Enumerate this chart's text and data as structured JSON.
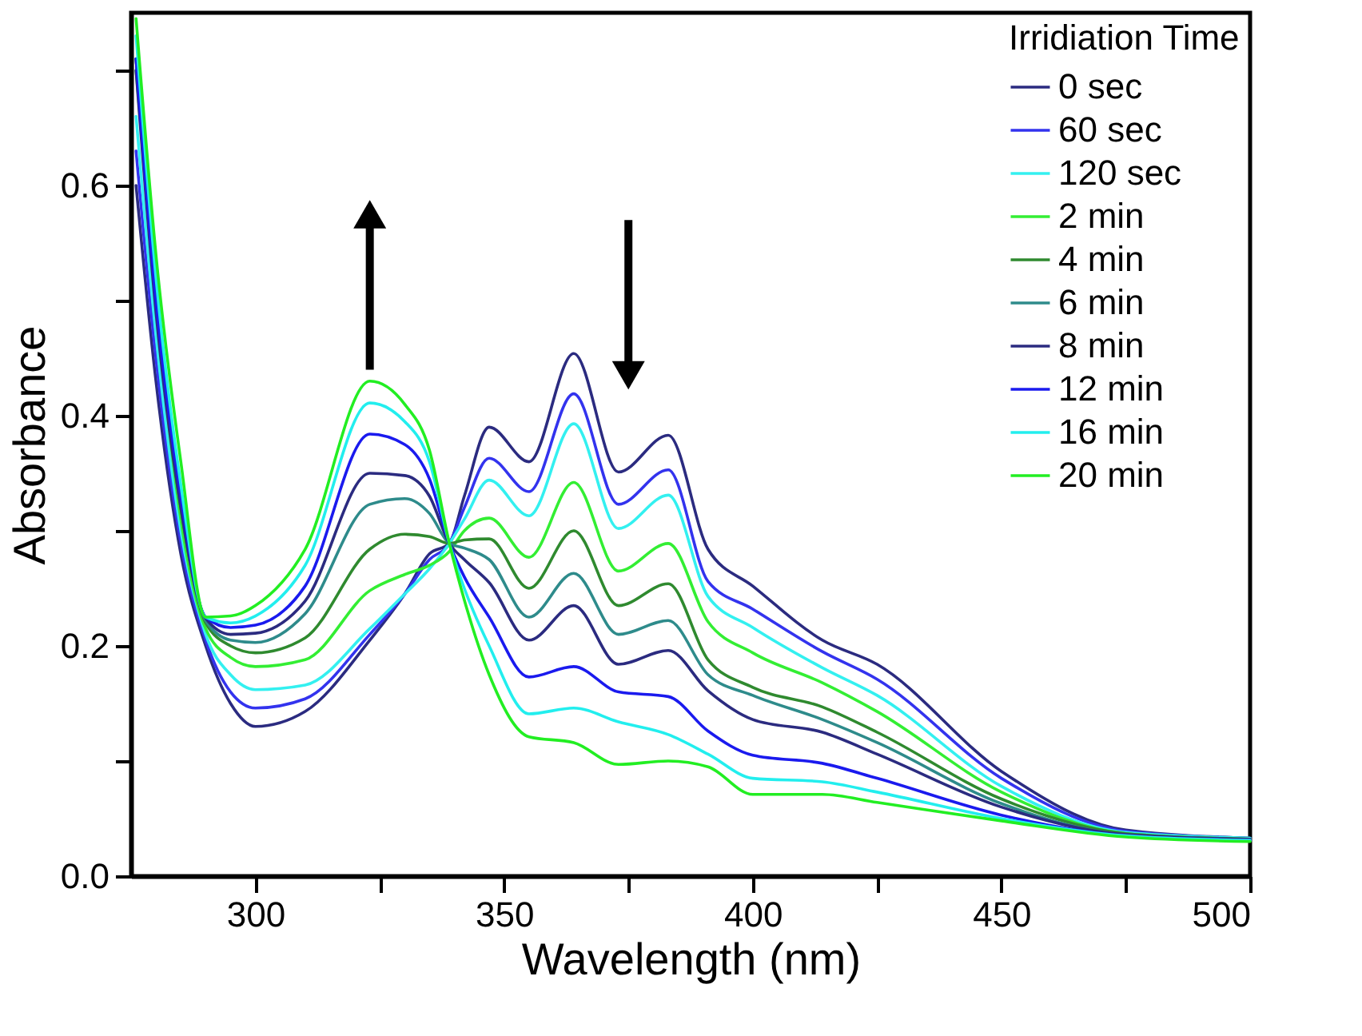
{
  "chart_data": {
    "type": "line",
    "xlabel": "Wavelength (nm)",
    "ylabel": "Absorbance",
    "legend_title": "Irridiation Time",
    "legend": "top right",
    "grid": false,
    "marker": "none",
    "line_style": "solid",
    "xlim": [
      275,
      500
    ],
    "xticks": [
      300,
      {
        "value": 325,
        "label": null
      },
      350,
      {
        "value": 375,
        "label": null
      },
      400,
      {
        "value": 425,
        "label": null
      },
      450,
      {
        "value": 475,
        "label": null
      },
      500
    ],
    "ylim": [
      0,
      0.75
    ],
    "yticks": [
      {
        "value": 0,
        "label": "0.0"
      },
      {
        "value": 0.1,
        "label": null
      },
      {
        "value": 0.2,
        "label": "0.2"
      },
      {
        "value": 0.3,
        "label": null
      },
      {
        "value": 0.4,
        "label": "0.4"
      },
      {
        "value": 0.5,
        "label": null
      },
      {
        "value": 0.6,
        "label": "0.6"
      },
      {
        "value": 0.7,
        "label": null
      }
    ],
    "x": [
      276,
      280,
      285,
      290,
      295,
      300,
      310,
      323,
      330,
      335,
      339,
      342,
      347,
      355,
      364,
      373,
      383,
      391,
      400,
      414,
      425,
      450,
      475,
      500
    ],
    "series": [
      {
        "name": "0 sec",
        "color": "#2b2b80",
        "values": [
          0.6,
          0.43,
          0.28,
          0.2,
          0.15,
          0.13,
          0.143,
          0.205,
          0.245,
          0.28,
          0.289,
          0.33,
          0.39,
          0.36,
          0.454,
          0.351,
          0.383,
          0.284,
          0.252,
          0.205,
          0.184,
          0.091,
          0.04,
          0.033
        ]
      },
      {
        "name": "60 sec",
        "color": "#3333ee",
        "values": [
          0.63,
          0.45,
          0.29,
          0.205,
          0.16,
          0.146,
          0.154,
          0.21,
          0.245,
          0.275,
          0.289,
          0.32,
          0.363,
          0.334,
          0.419,
          0.323,
          0.353,
          0.256,
          0.232,
          0.195,
          0.171,
          0.085,
          0.039,
          0.033
        ]
      },
      {
        "name": "120 sec",
        "color": "#33f0f0",
        "values": [
          0.66,
          0.47,
          0.3,
          0.21,
          0.175,
          0.162,
          0.166,
          0.215,
          0.245,
          0.267,
          0.289,
          0.31,
          0.344,
          0.313,
          0.393,
          0.302,
          0.331,
          0.243,
          0.216,
          0.181,
          0.157,
          0.078,
          0.038,
          0.033
        ]
      },
      {
        "name": "2 min",
        "color": "#33ee33",
        "values": [
          0.7,
          0.5,
          0.31,
          0.215,
          0.19,
          0.182,
          0.188,
          0.248,
          0.262,
          0.27,
          0.282,
          0.3,
          0.311,
          0.277,
          0.342,
          0.265,
          0.289,
          0.221,
          0.194,
          0.168,
          0.143,
          0.073,
          0.037,
          0.032
        ]
      },
      {
        "name": "4 min",
        "color": "#2f8a2f",
        "values": [
          0.71,
          0.5,
          0.32,
          0.22,
          0.2,
          0.194,
          0.207,
          0.284,
          0.297,
          0.295,
          0.289,
          0.292,
          0.293,
          0.25,
          0.3,
          0.235,
          0.254,
          0.188,
          0.164,
          0.147,
          0.125,
          0.067,
          0.037,
          0.032
        ]
      },
      {
        "name": "6 min",
        "color": "#2e8b8b",
        "values": [
          0.71,
          0.5,
          0.33,
          0.222,
          0.205,
          0.203,
          0.228,
          0.323,
          0.328,
          0.315,
          0.289,
          0.285,
          0.275,
          0.225,
          0.263,
          0.21,
          0.222,
          0.175,
          0.157,
          0.136,
          0.116,
          0.063,
          0.036,
          0.032
        ]
      },
      {
        "name": "8 min",
        "color": "#2b2b80",
        "values": [
          0.7,
          0.49,
          0.32,
          0.224,
          0.21,
          0.211,
          0.239,
          0.35,
          0.348,
          0.33,
          0.289,
          0.275,
          0.255,
          0.205,
          0.235,
          0.184,
          0.196,
          0.161,
          0.136,
          0.125,
          0.106,
          0.06,
          0.036,
          0.032
        ]
      },
      {
        "name": "12 min",
        "color": "#1a1aee",
        "values": [
          0.71,
          0.5,
          0.33,
          0.225,
          0.216,
          0.218,
          0.252,
          0.384,
          0.375,
          0.345,
          0.289,
          0.26,
          0.225,
          0.173,
          0.182,
          0.16,
          0.156,
          0.126,
          0.105,
          0.098,
          0.085,
          0.053,
          0.035,
          0.031
        ]
      },
      {
        "name": "16 min",
        "color": "#22eeee",
        "values": [
          0.73,
          0.52,
          0.34,
          0.225,
          0.22,
          0.226,
          0.27,
          0.411,
          0.395,
          0.36,
          0.289,
          0.25,
          0.2,
          0.141,
          0.146,
          0.134,
          0.123,
          0.106,
          0.085,
          0.082,
          0.073,
          0.05,
          0.035,
          0.031
        ]
      },
      {
        "name": "20 min",
        "color": "#22ee22",
        "values": [
          0.745,
          0.54,
          0.36,
          0.225,
          0.226,
          0.235,
          0.284,
          0.43,
          0.41,
          0.37,
          0.289,
          0.24,
          0.175,
          0.121,
          0.116,
          0.097,
          0.1,
          0.095,
          0.071,
          0.071,
          0.064,
          0.048,
          0.034,
          0.03
        ]
      }
    ]
  }
}
